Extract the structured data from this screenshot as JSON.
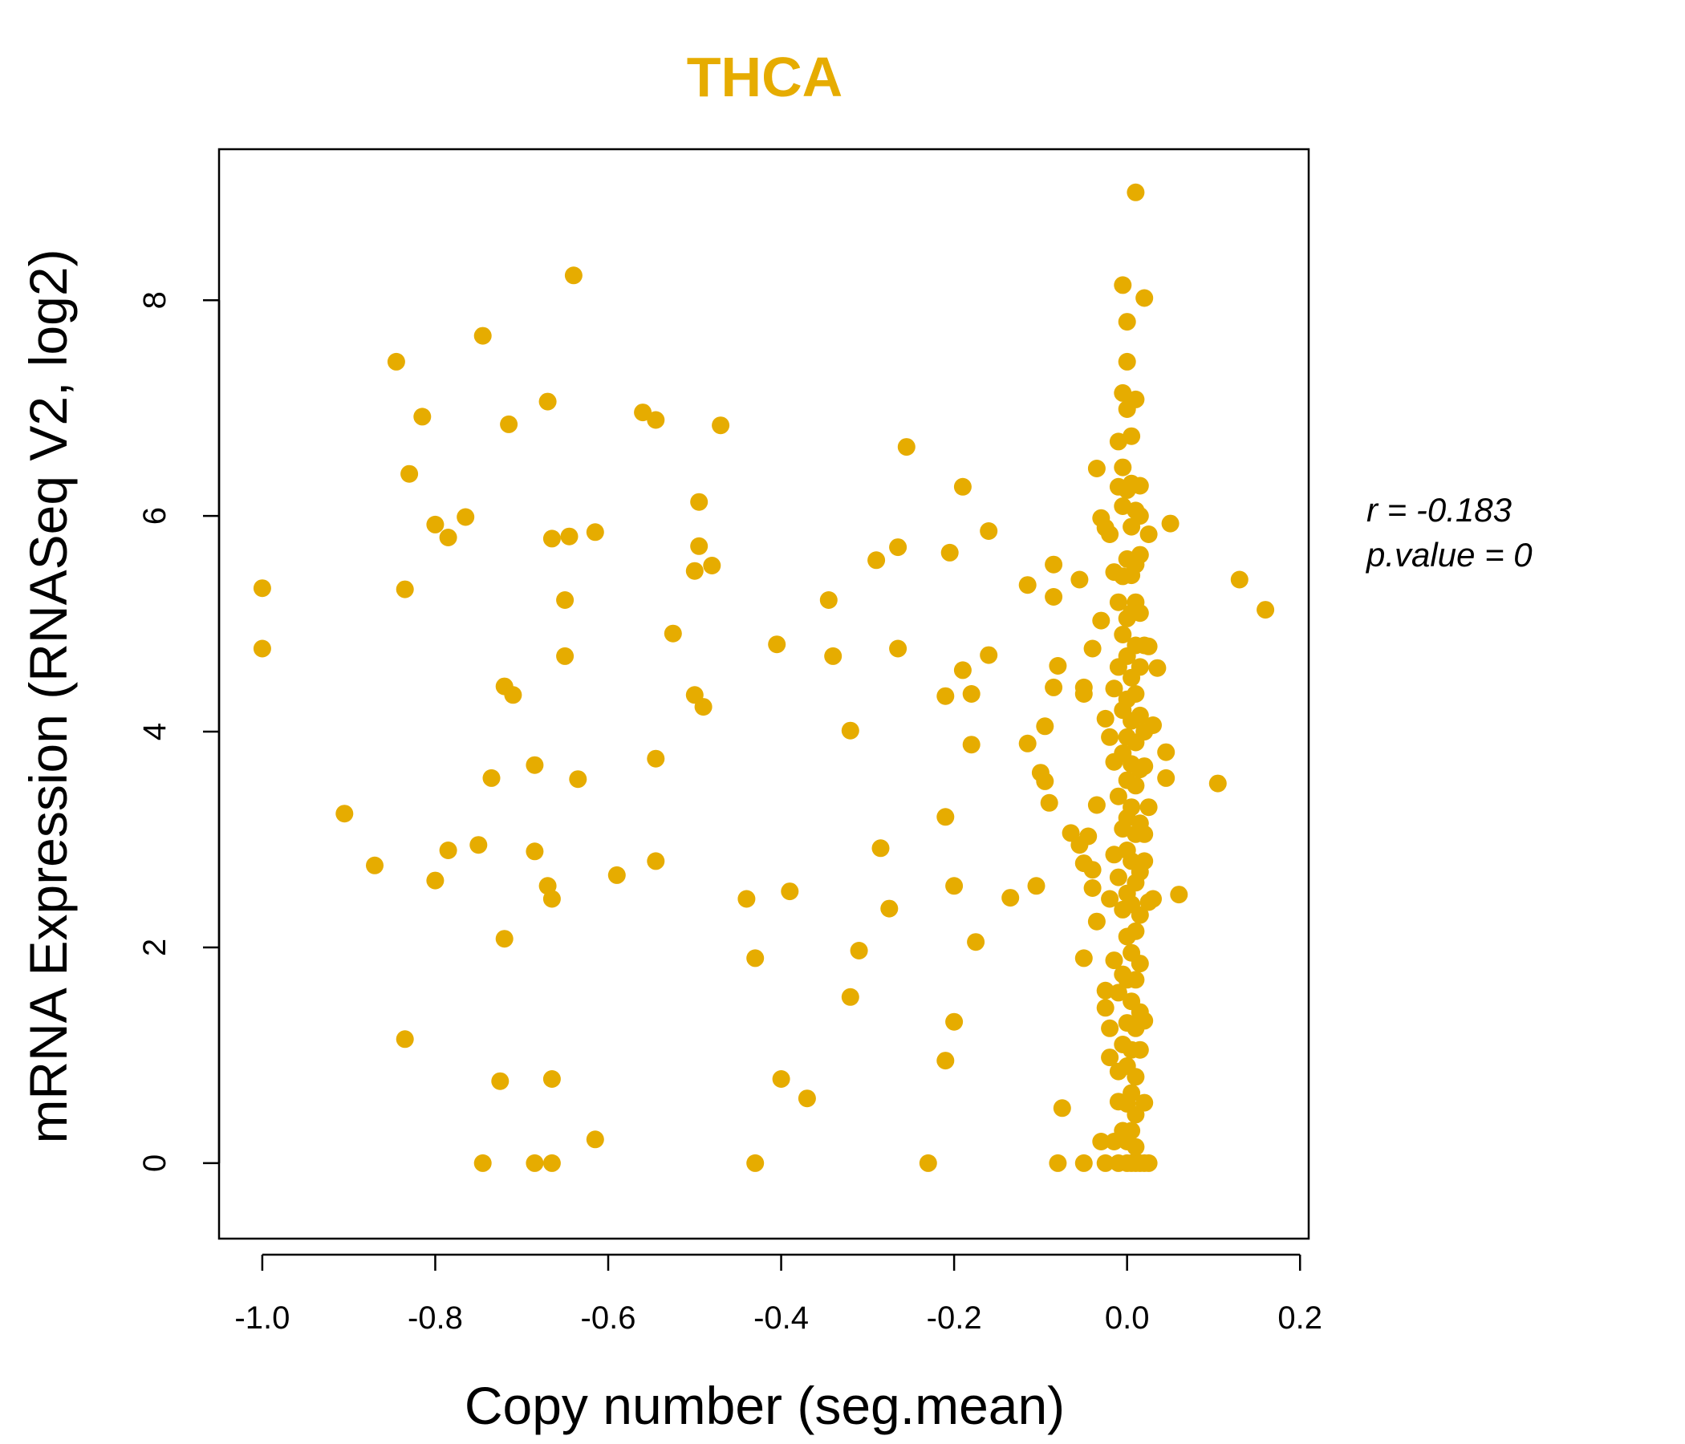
{
  "chart_data": {
    "type": "scatter",
    "title": "THCA",
    "xlabel": "Copy number (seg.mean)",
    "ylabel": "mRNA Expression (RNASeq V2, log2)",
    "xlim": [
      -1.05,
      0.21
    ],
    "ylim": [
      -0.7,
      9.4
    ],
    "xticks": [
      -1.0,
      -0.8,
      -0.6,
      -0.4,
      -0.2,
      0.0,
      0.2
    ],
    "xtick_labels": [
      "-1.0",
      "-0.8",
      "-0.6",
      "-0.4",
      "-0.2",
      "0.0",
      "0.2"
    ],
    "yticks": [
      0,
      2,
      4,
      6,
      8
    ],
    "ytick_labels": [
      "0",
      "2",
      "4",
      "6",
      "8"
    ],
    "color": "#E6AC00",
    "stats": {
      "r_label": "r = -0.183",
      "p_label": "p.value = 0"
    },
    "points": [
      [
        -1.0,
        5.33
      ],
      [
        -1.0,
        4.77
      ],
      [
        -0.905,
        3.24
      ],
      [
        -0.87,
        2.76
      ],
      [
        -0.845,
        7.43
      ],
      [
        -0.835,
        5.32
      ],
      [
        -0.835,
        1.15
      ],
      [
        -0.83,
        6.39
      ],
      [
        -0.815,
        6.92
      ],
      [
        -0.8,
        5.92
      ],
      [
        -0.8,
        2.62
      ],
      [
        -0.785,
        5.8
      ],
      [
        -0.785,
        2.9
      ],
      [
        -0.765,
        5.99
      ],
      [
        -0.75,
        2.95
      ],
      [
        -0.745,
        7.67
      ],
      [
        -0.745,
        0.0
      ],
      [
        -0.735,
        3.57
      ],
      [
        -0.725,
        0.76
      ],
      [
        -0.72,
        4.42
      ],
      [
        -0.72,
        2.08
      ],
      [
        -0.715,
        6.85
      ],
      [
        -0.71,
        4.34
      ],
      [
        -0.685,
        2.89
      ],
      [
        -0.685,
        3.69
      ],
      [
        -0.685,
        0.0
      ],
      [
        -0.67,
        2.57
      ],
      [
        -0.67,
        7.06
      ],
      [
        -0.665,
        5.79
      ],
      [
        -0.665,
        2.45
      ],
      [
        -0.665,
        0.78
      ],
      [
        -0.665,
        0.0
      ],
      [
        -0.65,
        5.22
      ],
      [
        -0.65,
        4.7
      ],
      [
        -0.645,
        5.81
      ],
      [
        -0.64,
        8.23
      ],
      [
        -0.635,
        3.56
      ],
      [
        -0.615,
        5.85
      ],
      [
        -0.615,
        0.22
      ],
      [
        -0.59,
        2.67
      ],
      [
        -0.56,
        6.96
      ],
      [
        -0.545,
        6.89
      ],
      [
        -0.545,
        3.75
      ],
      [
        -0.545,
        2.8
      ],
      [
        -0.525,
        4.91
      ],
      [
        -0.5,
        5.49
      ],
      [
        -0.5,
        4.34
      ],
      [
        -0.495,
        5.72
      ],
      [
        -0.495,
        6.13
      ],
      [
        -0.49,
        4.23
      ],
      [
        -0.48,
        5.54
      ],
      [
        -0.47,
        6.84
      ],
      [
        -0.44,
        2.45
      ],
      [
        -0.43,
        1.9
      ],
      [
        -0.43,
        0.0
      ],
      [
        -0.405,
        4.81
      ],
      [
        -0.4,
        0.78
      ],
      [
        -0.39,
        2.52
      ],
      [
        -0.37,
        0.6
      ],
      [
        -0.345,
        5.22
      ],
      [
        -0.34,
        4.7
      ],
      [
        -0.32,
        4.01
      ],
      [
        -0.32,
        1.54
      ],
      [
        -0.31,
        1.97
      ],
      [
        -0.29,
        5.59
      ],
      [
        -0.285,
        2.92
      ],
      [
        -0.275,
        2.36
      ],
      [
        -0.265,
        5.71
      ],
      [
        -0.265,
        4.77
      ],
      [
        -0.255,
        6.64
      ],
      [
        -0.23,
        0.0
      ],
      [
        -0.21,
        4.33
      ],
      [
        -0.21,
        3.21
      ],
      [
        -0.21,
        0.95
      ],
      [
        -0.205,
        5.66
      ],
      [
        -0.2,
        2.57
      ],
      [
        -0.2,
        1.31
      ],
      [
        -0.19,
        4.57
      ],
      [
        -0.19,
        6.27
      ],
      [
        -0.18,
        4.35
      ],
      [
        -0.18,
        3.88
      ],
      [
        -0.175,
        2.05
      ],
      [
        -0.16,
        4.71
      ],
      [
        -0.16,
        5.86
      ],
      [
        -0.135,
        2.46
      ],
      [
        -0.115,
        5.36
      ],
      [
        -0.115,
        3.89
      ],
      [
        -0.105,
        2.57
      ],
      [
        -0.1,
        3.62
      ],
      [
        -0.095,
        4.05
      ],
      [
        -0.095,
        3.54
      ],
      [
        -0.09,
        3.34
      ],
      [
        -0.085,
        5.55
      ],
      [
        -0.085,
        4.41
      ],
      [
        -0.085,
        5.25
      ],
      [
        -0.08,
        4.61
      ],
      [
        -0.08,
        0.0
      ],
      [
        -0.075,
        0.51
      ],
      [
        -0.065,
        3.06
      ],
      [
        -0.055,
        5.41
      ],
      [
        -0.055,
        2.95
      ],
      [
        -0.05,
        4.41
      ],
      [
        -0.05,
        4.35
      ],
      [
        -0.05,
        2.78
      ],
      [
        -0.05,
        1.9
      ],
      [
        -0.05,
        0.0
      ],
      [
        -0.045,
        3.03
      ],
      [
        -0.04,
        4.77
      ],
      [
        -0.04,
        2.55
      ],
      [
        -0.04,
        2.72
      ],
      [
        -0.035,
        6.44
      ],
      [
        -0.035,
        3.32
      ],
      [
        -0.035,
        2.24
      ],
      [
        -0.03,
        5.98
      ],
      [
        -0.03,
        5.03
      ],
      [
        -0.03,
        0.2
      ],
      [
        -0.025,
        5.89
      ],
      [
        -0.025,
        4.12
      ],
      [
        -0.025,
        1.6
      ],
      [
        -0.025,
        1.44
      ],
      [
        -0.025,
        0.0
      ],
      [
        -0.02,
        5.83
      ],
      [
        -0.02,
        3.95
      ],
      [
        -0.02,
        2.45
      ],
      [
        -0.02,
        1.25
      ],
      [
        -0.02,
        0.98
      ],
      [
        -0.015,
        5.48
      ],
      [
        -0.015,
        4.4
      ],
      [
        -0.015,
        3.72
      ],
      [
        -0.015,
        2.86
      ],
      [
        -0.015,
        1.88
      ],
      [
        -0.015,
        0.2
      ],
      [
        -0.01,
        6.69
      ],
      [
        -0.01,
        6.27
      ],
      [
        -0.01,
        5.2
      ],
      [
        -0.01,
        4.6
      ],
      [
        -0.01,
        3.4
      ],
      [
        -0.01,
        2.65
      ],
      [
        -0.01,
        1.58
      ],
      [
        -0.01,
        0.85
      ],
      [
        -0.01,
        0.57
      ],
      [
        -0.01,
        0.0
      ],
      [
        -0.005,
        8.14
      ],
      [
        -0.005,
        7.14
      ],
      [
        -0.005,
        6.45
      ],
      [
        -0.005,
        6.09
      ],
      [
        -0.005,
        5.44
      ],
      [
        -0.005,
        4.9
      ],
      [
        -0.005,
        4.2
      ],
      [
        -0.005,
        3.8
      ],
      [
        -0.005,
        3.1
      ],
      [
        -0.005,
        2.35
      ],
      [
        -0.005,
        1.75
      ],
      [
        -0.005,
        1.1
      ],
      [
        -0.005,
        0.3
      ],
      [
        0.0,
        7.8
      ],
      [
        0.0,
        7.43
      ],
      [
        0.0,
        6.99
      ],
      [
        0.0,
        6.24
      ],
      [
        0.0,
        5.6
      ],
      [
        0.0,
        5.05
      ],
      [
        0.0,
        4.7
      ],
      [
        0.0,
        4.3
      ],
      [
        0.0,
        3.95
      ],
      [
        0.0,
        3.55
      ],
      [
        0.0,
        3.2
      ],
      [
        0.0,
        2.9
      ],
      [
        0.0,
        2.5
      ],
      [
        0.0,
        2.1
      ],
      [
        0.0,
        1.7
      ],
      [
        0.0,
        1.3
      ],
      [
        0.0,
        0.9
      ],
      [
        0.0,
        0.55
      ],
      [
        0.0,
        0.2
      ],
      [
        0.0,
        0.0
      ],
      [
        0.005,
        6.74
      ],
      [
        0.005,
        6.3
      ],
      [
        0.005,
        5.9
      ],
      [
        0.005,
        5.45
      ],
      [
        0.005,
        5.1
      ],
      [
        0.005,
        4.5
      ],
      [
        0.005,
        4.1
      ],
      [
        0.005,
        3.7
      ],
      [
        0.005,
        3.3
      ],
      [
        0.005,
        2.8
      ],
      [
        0.005,
        2.4
      ],
      [
        0.005,
        1.95
      ],
      [
        0.005,
        1.5
      ],
      [
        0.005,
        1.05
      ],
      [
        0.005,
        0.65
      ],
      [
        0.005,
        0.3
      ],
      [
        0.005,
        0.0
      ],
      [
        0.01,
        9.0
      ],
      [
        0.01,
        7.08
      ],
      [
        0.01,
        6.05
      ],
      [
        0.01,
        5.55
      ],
      [
        0.01,
        5.2
      ],
      [
        0.01,
        4.8
      ],
      [
        0.01,
        4.35
      ],
      [
        0.01,
        3.9
      ],
      [
        0.01,
        3.5
      ],
      [
        0.01,
        3.05
      ],
      [
        0.01,
        2.6
      ],
      [
        0.01,
        2.15
      ],
      [
        0.01,
        1.7
      ],
      [
        0.01,
        1.25
      ],
      [
        0.01,
        0.8
      ],
      [
        0.01,
        0.45
      ],
      [
        0.01,
        0.15
      ],
      [
        0.01,
        0.0
      ],
      [
        0.015,
        6.28
      ],
      [
        0.015,
        6.0
      ],
      [
        0.015,
        5.64
      ],
      [
        0.015,
        5.1
      ],
      [
        0.015,
        4.6
      ],
      [
        0.015,
        4.15
      ],
      [
        0.015,
        3.65
      ],
      [
        0.015,
        3.15
      ],
      [
        0.015,
        2.7
      ],
      [
        0.015,
        2.3
      ],
      [
        0.015,
        1.85
      ],
      [
        0.015,
        1.4
      ],
      [
        0.015,
        1.05
      ],
      [
        0.015,
        0.0
      ],
      [
        0.02,
        8.02
      ],
      [
        0.02,
        4.8
      ],
      [
        0.02,
        4.0
      ],
      [
        0.02,
        3.68
      ],
      [
        0.02,
        3.05
      ],
      [
        0.02,
        2.8
      ],
      [
        0.02,
        1.32
      ],
      [
        0.02,
        0.56
      ],
      [
        0.02,
        0.0
      ],
      [
        0.025,
        5.83
      ],
      [
        0.025,
        4.79
      ],
      [
        0.025,
        3.3
      ],
      [
        0.025,
        2.42
      ],
      [
        0.025,
        0.0
      ],
      [
        0.03,
        4.06
      ],
      [
        0.03,
        2.45
      ],
      [
        0.035,
        4.59
      ],
      [
        0.045,
        3.81
      ],
      [
        0.045,
        3.57
      ],
      [
        0.05,
        5.93
      ],
      [
        0.06,
        2.49
      ],
      [
        0.105,
        3.52
      ],
      [
        0.13,
        5.41
      ],
      [
        0.16,
        5.13
      ]
    ]
  }
}
